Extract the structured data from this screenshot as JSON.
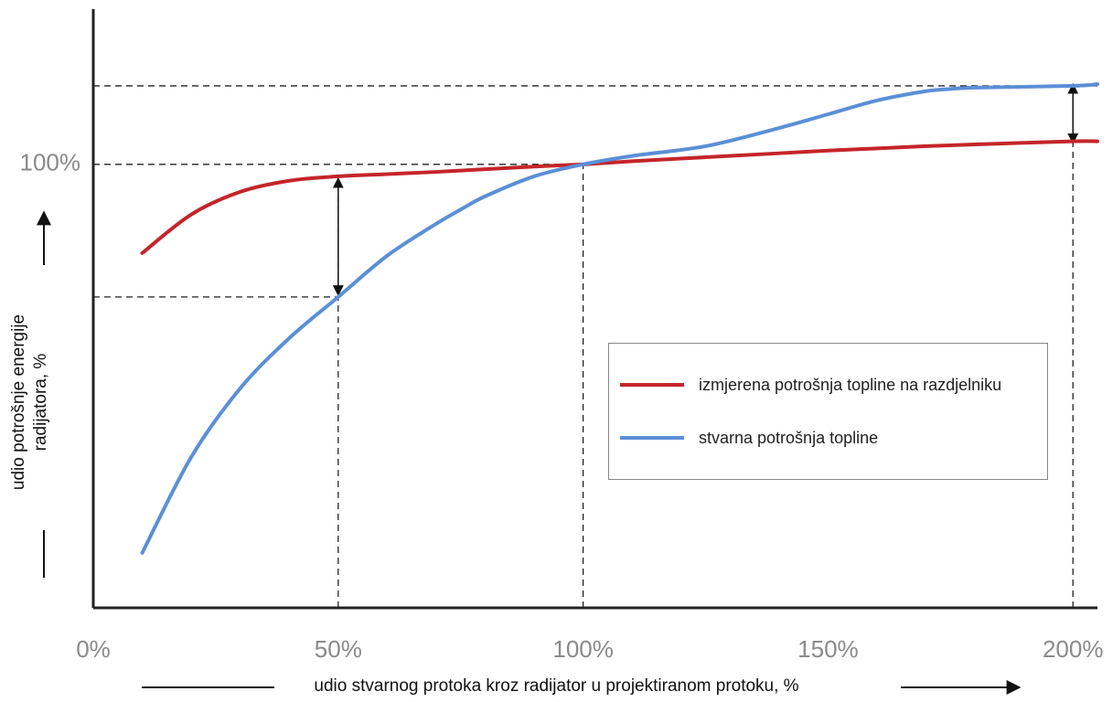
{
  "chart_data": {
    "type": "line",
    "x_label": "udio stvarnog protoka kroz radijator u projektiranom protoku, %",
    "y_label": "udio potrošnje energije radijatora, %",
    "x": [
      10,
      20,
      30,
      40,
      50,
      60,
      70,
      75,
      80,
      90,
      100,
      110,
      125,
      140,
      150,
      160,
      170,
      175,
      180,
      200,
      205
    ],
    "series": [
      {
        "name": "izmjerena potrošnja topline na razdjelniku",
        "color": "#c4252a",
        "values": [
          80,
          88.7,
          93.8,
          96.3,
          97.3,
          97.8,
          98.3,
          98.6,
          98.9,
          99.5,
          100,
          100.7,
          101.6,
          102.5,
          103.1,
          103.6,
          104.1,
          104.3,
          104.5,
          105.2,
          105.2
        ]
      },
      {
        "name": "stvarna potrošnja topline",
        "color": "#5b8fd6",
        "values": [
          12.4,
          34,
          49.5,
          60.8,
          70.1,
          79.4,
          86.6,
          89.8,
          92.8,
          97.3,
          100,
          101.9,
          104.1,
          108.2,
          111.3,
          114.4,
          116.5,
          117,
          117.3,
          117.7,
          118.1
        ]
      }
    ],
    "xlim": [
      0,
      205
    ],
    "ylim": [
      0,
      135
    ],
    "xticks": [
      {
        "value": 0,
        "label": "0%"
      },
      {
        "value": 50,
        "label": "50%"
      },
      {
        "value": 100,
        "label": "100%"
      },
      {
        "value": 150,
        "label": "150%"
      },
      {
        "value": 200,
        "label": "200%"
      }
    ],
    "yticks": [
      {
        "value": 100,
        "label": "100%"
      }
    ]
  }
}
